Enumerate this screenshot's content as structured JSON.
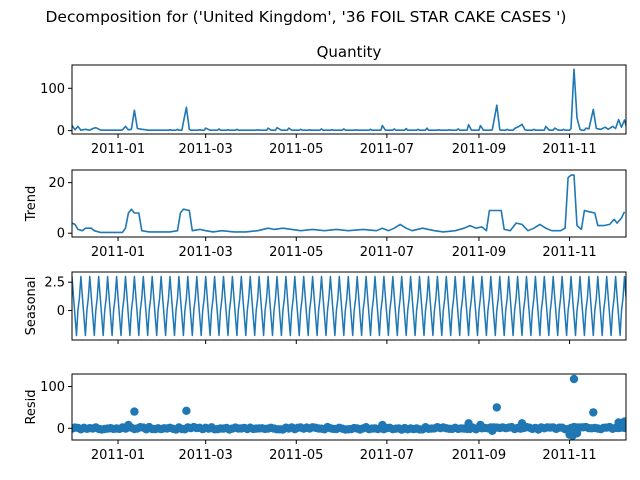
{
  "figure_title": "Decomposition for ('United Kingdom', '36 FOIL STAR CAKE CASES ')",
  "line_color": "#1f77b4",
  "chart_data": [
    {
      "id": "observed",
      "type": "line",
      "title": "Quantity",
      "ylabel": "",
      "x_range": [
        "2010-12-01",
        "2011-12-09"
      ],
      "ylim": [
        -8,
        155
      ],
      "yticks": [
        0,
        100
      ],
      "xticks": [
        "2011-01",
        "2011-03",
        "2011-05",
        "2011-07",
        "2011-09",
        "2011-11"
      ],
      "show_xtick_labels": true,
      "baseline": 1,
      "points": [
        [
          "2010-12-01",
          12
        ],
        [
          "2010-12-03",
          2
        ],
        [
          "2010-12-05",
          10
        ],
        [
          "2010-12-07",
          1
        ],
        [
          "2010-12-10",
          3
        ],
        [
          "2010-12-13",
          1
        ],
        [
          "2010-12-15",
          5
        ],
        [
          "2010-12-17",
          7
        ],
        [
          "2010-12-20",
          2
        ],
        [
          "2011-01-04",
          2
        ],
        [
          "2011-01-06",
          10
        ],
        [
          "2011-01-08",
          2
        ],
        [
          "2011-01-10",
          3
        ],
        [
          "2011-01-12",
          48
        ],
        [
          "2011-01-14",
          5
        ],
        [
          "2011-01-17",
          3
        ],
        [
          "2011-01-20",
          2
        ],
        [
          "2011-02-05",
          2
        ],
        [
          "2011-02-10",
          3
        ],
        [
          "2011-02-14",
          20
        ],
        [
          "2011-02-16",
          55
        ],
        [
          "2011-02-18",
          3
        ],
        [
          "2011-02-25",
          2
        ],
        [
          "2011-03-01",
          6
        ],
        [
          "2011-03-04",
          1
        ],
        [
          "2011-03-10",
          4
        ],
        [
          "2011-03-16",
          2
        ],
        [
          "2011-03-22",
          3
        ],
        [
          "2011-03-28",
          1
        ],
        [
          "2011-04-05",
          2
        ],
        [
          "2011-04-12",
          6
        ],
        [
          "2011-04-14",
          1
        ],
        [
          "2011-04-18",
          7
        ],
        [
          "2011-04-21",
          1
        ],
        [
          "2011-04-26",
          6
        ],
        [
          "2011-04-28",
          1
        ],
        [
          "2011-05-04",
          3
        ],
        [
          "2011-05-10",
          2
        ],
        [
          "2011-05-18",
          4
        ],
        [
          "2011-05-25",
          2
        ],
        [
          "2011-06-02",
          4
        ],
        [
          "2011-06-10",
          2
        ],
        [
          "2011-06-20",
          3
        ],
        [
          "2011-06-28",
          12
        ],
        [
          "2011-06-30",
          1
        ],
        [
          "2011-07-06",
          4
        ],
        [
          "2011-07-14",
          5
        ],
        [
          "2011-07-22",
          3
        ],
        [
          "2011-07-28",
          6
        ],
        [
          "2011-08-05",
          2
        ],
        [
          "2011-08-12",
          2
        ],
        [
          "2011-08-18",
          4
        ],
        [
          "2011-08-25",
          14
        ],
        [
          "2011-08-27",
          1
        ],
        [
          "2011-09-02",
          12
        ],
        [
          "2011-09-04",
          1
        ],
        [
          "2011-09-10",
          2
        ],
        [
          "2011-09-13",
          60
        ],
        [
          "2011-09-15",
          2
        ],
        [
          "2011-09-20",
          3
        ],
        [
          "2011-09-25",
          5
        ],
        [
          "2011-09-28",
          10
        ],
        [
          "2011-09-30",
          15
        ],
        [
          "2011-10-02",
          2
        ],
        [
          "2011-10-08",
          3
        ],
        [
          "2011-10-12",
          1
        ],
        [
          "2011-10-16",
          10
        ],
        [
          "2011-10-18",
          2
        ],
        [
          "2011-10-22",
          6
        ],
        [
          "2011-10-24",
          2
        ],
        [
          "2011-10-28",
          3
        ],
        [
          "2011-11-02",
          5
        ],
        [
          "2011-11-04",
          145
        ],
        [
          "2011-11-06",
          30
        ],
        [
          "2011-11-08",
          3
        ],
        [
          "2011-11-12",
          6
        ],
        [
          "2011-11-14",
          4
        ],
        [
          "2011-11-17",
          50
        ],
        [
          "2011-11-19",
          5
        ],
        [
          "2011-11-22",
          3
        ],
        [
          "2011-11-25",
          8
        ],
        [
          "2011-11-27",
          3
        ],
        [
          "2011-11-30",
          10
        ],
        [
          "2011-12-02",
          5
        ],
        [
          "2011-12-04",
          26
        ],
        [
          "2011-12-06",
          8
        ],
        [
          "2011-12-08",
          25
        ],
        [
          "2011-12-09",
          12
        ]
      ]
    },
    {
      "id": "trend",
      "type": "line",
      "title": "",
      "ylabel": "Trend",
      "x_range": [
        "2010-12-01",
        "2011-12-09"
      ],
      "ylim": [
        -1.5,
        25
      ],
      "yticks": [
        0,
        20
      ],
      "xticks": [
        "2011-01",
        "2011-03",
        "2011-05",
        "2011-07",
        "2011-09",
        "2011-11"
      ],
      "show_xtick_labels": true,
      "points": [
        [
          "2010-12-01",
          4
        ],
        [
          "2010-12-03",
          3.5
        ],
        [
          "2010-12-05",
          1.5
        ],
        [
          "2010-12-08",
          1
        ],
        [
          "2010-12-10",
          2
        ],
        [
          "2010-12-14",
          2
        ],
        [
          "2010-12-16",
          1
        ],
        [
          "2010-12-20",
          0.3
        ],
        [
          "2011-01-04",
          0.3
        ],
        [
          "2011-01-06",
          2
        ],
        [
          "2011-01-08",
          8
        ],
        [
          "2011-01-10",
          9.5
        ],
        [
          "2011-01-12",
          8
        ],
        [
          "2011-01-15",
          8
        ],
        [
          "2011-01-17",
          1
        ],
        [
          "2011-01-22",
          0.5
        ],
        [
          "2011-02-05",
          0.5
        ],
        [
          "2011-02-10",
          1
        ],
        [
          "2011-02-12",
          8
        ],
        [
          "2011-02-14",
          9.5
        ],
        [
          "2011-02-18",
          9
        ],
        [
          "2011-02-20",
          1
        ],
        [
          "2011-02-25",
          1.5
        ],
        [
          "2011-03-01",
          1
        ],
        [
          "2011-03-06",
          0.5
        ],
        [
          "2011-03-12",
          1
        ],
        [
          "2011-03-20",
          0.5
        ],
        [
          "2011-03-28",
          0.5
        ],
        [
          "2011-04-05",
          1
        ],
        [
          "2011-04-12",
          2
        ],
        [
          "2011-04-16",
          1.5
        ],
        [
          "2011-04-22",
          2
        ],
        [
          "2011-04-28",
          1.5
        ],
        [
          "2011-05-04",
          1
        ],
        [
          "2011-05-12",
          1.5
        ],
        [
          "2011-05-20",
          1
        ],
        [
          "2011-05-28",
          1.5
        ],
        [
          "2011-06-05",
          1
        ],
        [
          "2011-06-15",
          1.5
        ],
        [
          "2011-06-24",
          1
        ],
        [
          "2011-06-28",
          2
        ],
        [
          "2011-07-02",
          1
        ],
        [
          "2011-07-06",
          2
        ],
        [
          "2011-07-10",
          3.5
        ],
        [
          "2011-07-14",
          2
        ],
        [
          "2011-07-18",
          1
        ],
        [
          "2011-07-25",
          2
        ],
        [
          "2011-08-02",
          1
        ],
        [
          "2011-08-08",
          0.5
        ],
        [
          "2011-08-16",
          1
        ],
        [
          "2011-08-22",
          2
        ],
        [
          "2011-08-26",
          3
        ],
        [
          "2011-08-30",
          2
        ],
        [
          "2011-09-03",
          2.5
        ],
        [
          "2011-09-06",
          1
        ],
        [
          "2011-09-08",
          9
        ],
        [
          "2011-09-16",
          9
        ],
        [
          "2011-09-18",
          1.5
        ],
        [
          "2011-09-22",
          1
        ],
        [
          "2011-09-26",
          4
        ],
        [
          "2011-09-30",
          3.5
        ],
        [
          "2011-10-04",
          1
        ],
        [
          "2011-10-08",
          2
        ],
        [
          "2011-10-12",
          3.5
        ],
        [
          "2011-10-16",
          2
        ],
        [
          "2011-10-20",
          1
        ],
        [
          "2011-10-26",
          1
        ],
        [
          "2011-10-29",
          2
        ],
        [
          "2011-10-31",
          22
        ],
        [
          "2011-11-02",
          23
        ],
        [
          "2011-11-04",
          23
        ],
        [
          "2011-11-06",
          3
        ],
        [
          "2011-11-09",
          1.5
        ],
        [
          "2011-11-11",
          9
        ],
        [
          "2011-11-14",
          8.5
        ],
        [
          "2011-11-18",
          8
        ],
        [
          "2011-11-20",
          3
        ],
        [
          "2011-11-24",
          3
        ],
        [
          "2011-11-28",
          3.5
        ],
        [
          "2011-12-01",
          5.5
        ],
        [
          "2011-12-03",
          4
        ],
        [
          "2011-12-06",
          6
        ],
        [
          "2011-12-08",
          8.5
        ]
      ]
    },
    {
      "id": "seasonal",
      "type": "line",
      "title": "",
      "ylabel": "Seasonal",
      "x_range": [
        "2010-12-01",
        "2011-12-09"
      ],
      "ylim": [
        -2.6,
        3.4
      ],
      "yticks": [
        0,
        2.5
      ],
      "xticks": [
        "2011-01",
        "2011-03",
        "2011-05",
        "2011-07",
        "2011-09",
        "2011-11"
      ],
      "show_xtick_labels": false,
      "period_days": 6,
      "cycle": [
        3.0,
        1.2,
        -0.5,
        -2.2,
        0.0,
        1.1
      ]
    },
    {
      "id": "resid",
      "type": "scatter",
      "title": "",
      "ylabel": "Resid",
      "x_range": [
        "2010-12-01",
        "2011-12-09"
      ],
      "ylim": [
        -28,
        130
      ],
      "yticks": [
        0,
        100
      ],
      "xticks": [
        "2011-01",
        "2011-03",
        "2011-05",
        "2011-07",
        "2011-09",
        "2011-11"
      ],
      "show_xtick_labels": true,
      "outliers": [
        [
          "2011-01-12",
          40
        ],
        [
          "2011-02-16",
          42
        ],
        [
          "2011-08-25",
          12
        ],
        [
          "2011-09-13",
          50
        ],
        [
          "2011-09-30",
          12
        ],
        [
          "2011-11-04",
          118
        ],
        [
          "2011-11-17",
          38
        ],
        [
          "2011-12-04",
          14
        ],
        [
          "2011-12-08",
          16
        ],
        [
          "2011-11-01",
          -15
        ],
        [
          "2011-11-03",
          -18
        ],
        [
          "2011-11-06",
          -12
        ],
        [
          "2011-09-10",
          -6
        ],
        [
          "2011-01-08",
          8
        ],
        [
          "2011-06-28",
          8
        ],
        [
          "2011-09-02",
          8
        ]
      ]
    }
  ]
}
